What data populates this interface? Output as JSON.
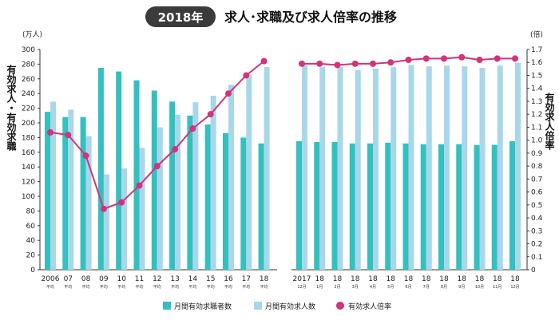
{
  "chart_data": {
    "type": "bar",
    "title_badge": "2018年",
    "title": "求人･求職及び求人倍率の推移",
    "y_left_unit": "(万人)",
    "y_right_unit": "(倍)",
    "y_left_label": "有効求人・有効求職",
    "y_right_label": "有効求人倍率",
    "ylim_left": [
      0,
      300
    ],
    "ylim_right": [
      0,
      1.7
    ],
    "ticks_left": [
      "0",
      "20",
      "40",
      "60",
      "80",
      "100",
      "120",
      "140",
      "160",
      "180",
      "200",
      "220",
      "240",
      "260",
      "280",
      "300"
    ],
    "ticks_right": [
      "0",
      "0.1",
      "0.2",
      "0.3",
      "0.4",
      "0.5",
      "0.6",
      "0.7",
      "0.8",
      "0.9",
      "1.0",
      "1.1",
      "1.2",
      "1.3",
      "1.4",
      "1.5",
      "1.6",
      "1.7"
    ],
    "groups": [
      {
        "categories": [
          "2006",
          "07",
          "08",
          "09",
          "10",
          "11",
          "12",
          "13",
          "14",
          "15",
          "16",
          "17",
          "18"
        ],
        "sublabels": [
          "平均",
          "平均",
          "平均",
          "平均",
          "平均",
          "平均",
          "平均",
          "平均",
          "平均",
          "平均",
          "平均",
          "平均",
          "平均"
        ],
        "seekers": [
          215,
          208,
          208,
          275,
          270,
          258,
          244,
          229,
          210,
          198,
          186,
          180,
          172
        ],
        "openings": [
          229,
          218,
          182,
          130,
          138,
          166,
          194,
          211,
          228,
          237,
          252,
          266,
          276
        ],
        "ratio": [
          1.06,
          1.04,
          0.88,
          0.47,
          0.52,
          0.65,
          0.8,
          0.93,
          1.09,
          1.2,
          1.36,
          1.5,
          1.61
        ]
      },
      {
        "categories": [
          "2017",
          "18",
          "18",
          "18",
          "18",
          "18",
          "18",
          "18",
          "18",
          "18",
          "18",
          "18",
          "18"
        ],
        "sublabels": [
          "12月",
          "1月",
          "2月",
          "3月",
          "4月",
          "5月",
          "6月",
          "7月",
          "8月",
          "9月",
          "10月",
          "11月",
          "12月"
        ],
        "seekers": [
          175,
          174,
          174,
          172,
          172,
          173,
          172,
          171,
          171,
          171,
          170,
          170,
          175
        ],
        "openings": [
          279,
          276,
          276,
          272,
          274,
          276,
          279,
          277,
          278,
          277,
          275,
          278,
          282
        ],
        "ratio": [
          1.59,
          1.59,
          1.58,
          1.59,
          1.59,
          1.6,
          1.62,
          1.63,
          1.63,
          1.64,
          1.62,
          1.63,
          1.63
        ]
      }
    ],
    "series": [
      {
        "name": "月間有効求職者数",
        "color": "#33c0c0"
      },
      {
        "name": "月間有効求人数",
        "color": "#a9d7ea"
      },
      {
        "name": "有効求人倍率",
        "color": "#d2337a"
      }
    ],
    "legend_position": "bottom",
    "grid": false
  }
}
